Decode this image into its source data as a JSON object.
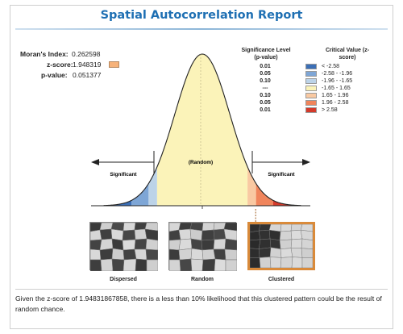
{
  "report": {
    "title": "Spatial Autocorrelation Report"
  },
  "stats": {
    "morans_index_label": "Moran's Index:",
    "morans_index_value": "0.262598",
    "z_score_label": "z-score:",
    "z_score_value": "1.948319",
    "p_value_label": "p-value:",
    "p_value_value": "0.051377",
    "z_score_marker_color": "#f6b27a"
  },
  "legend": {
    "significance_header": "Significance Level (p-value)",
    "critical_header": "Critical Value (z-score)",
    "rows": [
      {
        "p": "0.01",
        "color": "#3b6fb6",
        "critical": "< -2.58"
      },
      {
        "p": "0.05",
        "color": "#7ea6d6",
        "critical": "-2.58 - -1.96"
      },
      {
        "p": "0.10",
        "color": "#bcd3e8",
        "critical": "-1.96 - -1.65"
      },
      {
        "p": "---",
        "color": "#fbf3b9",
        "critical": "-1.65 - 1.65"
      },
      {
        "p": "0.10",
        "color": "#f9c9a2",
        "critical": "1.65 - 1.96"
      },
      {
        "p": "0.05",
        "color": "#f0855c",
        "critical": "1.96 - 2.58"
      },
      {
        "p": "0.01",
        "color": "#d43a2b",
        "critical": "> 2.58"
      }
    ]
  },
  "curve": {
    "center_label": "(Random)",
    "left_label": "Significant",
    "right_label": "Significant",
    "z_score": 1.948319
  },
  "patterns": [
    {
      "label": "Dispersed"
    },
    {
      "label": "Random"
    },
    {
      "label": "Clustered"
    }
  ],
  "summary": "Given the z-score of 1.94831867858, there is a less than 10% likelihood that this clustered pattern could be the result of random chance."
}
